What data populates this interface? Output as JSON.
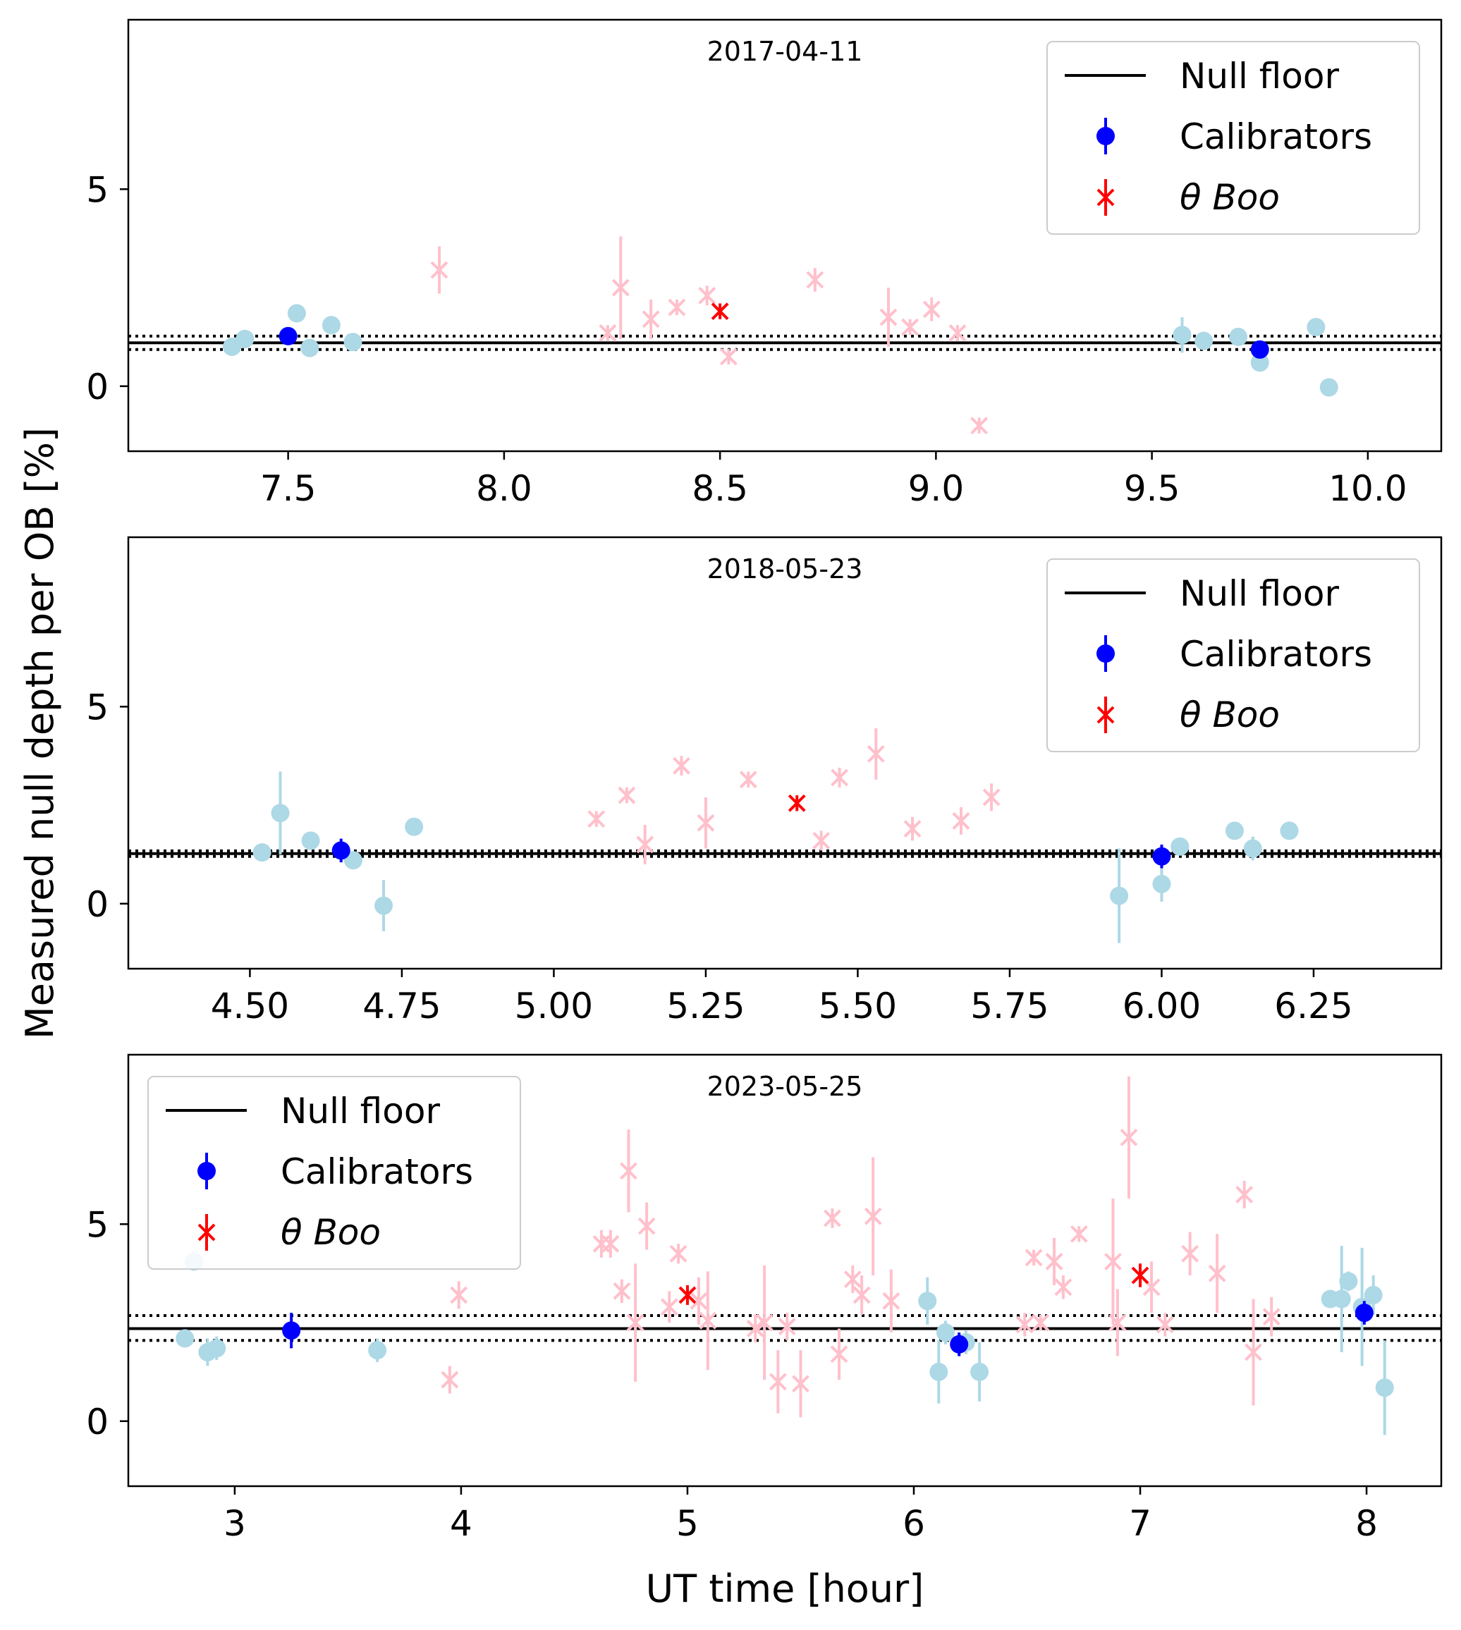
{
  "figure": {
    "ylabel": "Measured null depth per OB [%]",
    "xlabel": "UT time [hour]"
  },
  "legend_entries": [
    "Null floor",
    "Calibrators",
    "θ Boo"
  ],
  "colors": {
    "null_floor": "#000000",
    "calibrator_highlight": "#0000ff",
    "calibrator": "#add8e6",
    "target_highlight": "#ff0000",
    "target": "#ffc0cb"
  },
  "chart_data": [
    {
      "type": "scatter",
      "title": "2017-04-11",
      "xlim": [
        7.13,
        10.17
      ],
      "ylim": [
        -1.65,
        9.3
      ],
      "xticks": [
        7.5,
        8.0,
        8.5,
        9.0,
        9.5,
        10.0
      ],
      "xtick_labels": [
        "7.5",
        "8.0",
        "8.5",
        "9.0",
        "9.5",
        "10.0"
      ],
      "yticks": [
        0,
        5
      ],
      "ytick_labels": [
        "0",
        "5"
      ],
      "legend_position": "top-right",
      "null_floor": {
        "value": 1.1,
        "lower": 0.93,
        "upper": 1.27
      },
      "calibrators": [
        {
          "x": 7.37,
          "y": 1.0,
          "err": 0.1
        },
        {
          "x": 7.4,
          "y": 1.2,
          "err": 0.1
        },
        {
          "x": 7.52,
          "y": 1.85,
          "err": 0.1
        },
        {
          "x": 7.55,
          "y": 0.97,
          "err": 0.1
        },
        {
          "x": 7.6,
          "y": 1.55,
          "err": 0.1
        },
        {
          "x": 7.65,
          "y": 1.12,
          "err": 0.1
        },
        {
          "x": 9.57,
          "y": 1.3,
          "err": 0.45
        },
        {
          "x": 9.62,
          "y": 1.15,
          "err": 0.1
        },
        {
          "x": 9.7,
          "y": 1.25,
          "err": 0.1
        },
        {
          "x": 9.75,
          "y": 0.6,
          "err": 0.1
        },
        {
          "x": 9.88,
          "y": 1.5,
          "err": 0.1
        },
        {
          "x": 9.91,
          "y": -0.03,
          "err": 0.1
        }
      ],
      "calibrators_highlight": [
        {
          "x": 7.5,
          "y": 1.27,
          "err": 0.12
        },
        {
          "x": 9.75,
          "y": 0.93,
          "err": 0.1
        }
      ],
      "targets": [
        {
          "x": 7.85,
          "y": 2.95,
          "err": 0.6
        },
        {
          "x": 8.24,
          "y": 1.35,
          "err": 0.2
        },
        {
          "x": 8.27,
          "y": 2.5,
          "err": 1.3
        },
        {
          "x": 8.34,
          "y": 1.7,
          "err": 0.5
        },
        {
          "x": 8.4,
          "y": 2.0,
          "err": 0.2
        },
        {
          "x": 8.47,
          "y": 2.3,
          "err": 0.25
        },
        {
          "x": 8.52,
          "y": 0.75,
          "err": 0.2
        },
        {
          "x": 8.72,
          "y": 2.7,
          "err": 0.3
        },
        {
          "x": 8.89,
          "y": 1.75,
          "err": 0.75
        },
        {
          "x": 8.94,
          "y": 1.5,
          "err": 0.2
        },
        {
          "x": 8.99,
          "y": 1.95,
          "err": 0.3
        },
        {
          "x": 9.05,
          "y": 1.35,
          "err": 0.2
        },
        {
          "x": 9.1,
          "y": -1.0,
          "err": 0.2
        }
      ],
      "targets_highlight": [
        {
          "x": 8.5,
          "y": 1.9,
          "err": 0.2
        }
      ]
    },
    {
      "type": "scatter",
      "title": "2018-05-23",
      "xlim": [
        4.3,
        6.46
      ],
      "ylim": [
        -1.65,
        9.3
      ],
      "xticks": [
        4.5,
        4.75,
        5.0,
        5.25,
        5.5,
        5.75,
        6.0,
        6.25
      ],
      "xtick_labels": [
        "4.50",
        "4.75",
        "5.00",
        "5.25",
        "5.50",
        "5.75",
        "6.00",
        "6.25"
      ],
      "yticks": [
        0,
        5
      ],
      "ytick_labels": [
        "0",
        "5"
      ],
      "legend_position": "top-right",
      "null_floor": {
        "value": 1.27,
        "lower": 1.2,
        "upper": 1.34
      },
      "calibrators": [
        {
          "x": 4.52,
          "y": 1.3,
          "err": 0.15
        },
        {
          "x": 4.55,
          "y": 2.3,
          "err": 1.05
        },
        {
          "x": 4.6,
          "y": 1.6,
          "err": 0.15
        },
        {
          "x": 4.67,
          "y": 1.1,
          "err": 0.15
        },
        {
          "x": 4.72,
          "y": -0.05,
          "err": 0.65
        },
        {
          "x": 4.77,
          "y": 1.95,
          "err": 0.1
        },
        {
          "x": 5.93,
          "y": 0.2,
          "err": 1.2
        },
        {
          "x": 6.0,
          "y": 0.5,
          "err": 0.45
        },
        {
          "x": 6.03,
          "y": 1.45,
          "err": 0.15
        },
        {
          "x": 6.12,
          "y": 1.85,
          "err": 0.1
        },
        {
          "x": 6.15,
          "y": 1.4,
          "err": 0.3
        },
        {
          "x": 6.21,
          "y": 1.85,
          "err": 0.1
        }
      ],
      "calibrators_highlight": [
        {
          "x": 4.65,
          "y": 1.35,
          "err": 0.3
        },
        {
          "x": 6.0,
          "y": 1.2,
          "err": 0.3
        }
      ],
      "targets": [
        {
          "x": 5.07,
          "y": 2.15,
          "err": 0.2
        },
        {
          "x": 5.12,
          "y": 2.75,
          "err": 0.2
        },
        {
          "x": 5.15,
          "y": 1.5,
          "err": 0.5
        },
        {
          "x": 5.21,
          "y": 3.5,
          "err": 0.25
        },
        {
          "x": 5.25,
          "y": 2.05,
          "err": 0.65
        },
        {
          "x": 5.32,
          "y": 3.15,
          "err": 0.2
        },
        {
          "x": 5.44,
          "y": 1.6,
          "err": 0.25
        },
        {
          "x": 5.47,
          "y": 3.2,
          "err": 0.25
        },
        {
          "x": 5.53,
          "y": 3.8,
          "err": 0.65
        },
        {
          "x": 5.59,
          "y": 1.9,
          "err": 0.3
        },
        {
          "x": 5.67,
          "y": 2.1,
          "err": 0.35
        },
        {
          "x": 5.72,
          "y": 2.7,
          "err": 0.35
        }
      ],
      "targets_highlight": [
        {
          "x": 5.4,
          "y": 2.55,
          "err": 0.2
        }
      ]
    },
    {
      "type": "scatter",
      "title": "2023-05-25",
      "xlim": [
        2.53,
        8.33
      ],
      "ylim": [
        -1.65,
        9.3
      ],
      "xticks": [
        3,
        4,
        5,
        6,
        7,
        8
      ],
      "xtick_labels": [
        "3",
        "4",
        "5",
        "6",
        "7",
        "8"
      ],
      "yticks": [
        0,
        5
      ],
      "ytick_labels": [
        "0",
        "5"
      ],
      "legend_position": "top-left",
      "null_floor": {
        "value": 2.35,
        "lower": 2.05,
        "upper": 2.68
      },
      "calibrators": [
        {
          "x": 2.78,
          "y": 2.1,
          "err": 0.2
        },
        {
          "x": 2.82,
          "y": 4.05,
          "err": 0.15
        },
        {
          "x": 2.88,
          "y": 1.75,
          "err": 0.35
        },
        {
          "x": 2.92,
          "y": 1.85,
          "err": 0.3
        },
        {
          "x": 3.63,
          "y": 1.8,
          "err": 0.3
        },
        {
          "x": 6.06,
          "y": 3.05,
          "err": 0.6
        },
        {
          "x": 6.11,
          "y": 1.25,
          "err": 0.8
        },
        {
          "x": 6.14,
          "y": 2.25,
          "err": 0.3
        },
        {
          "x": 6.23,
          "y": 2.0,
          "err": 0.3
        },
        {
          "x": 6.29,
          "y": 1.25,
          "err": 0.75
        },
        {
          "x": 7.84,
          "y": 3.1,
          "err": 0.2
        },
        {
          "x": 7.89,
          "y": 3.1,
          "err": 1.35
        },
        {
          "x": 7.92,
          "y": 3.55,
          "err": 0.25
        },
        {
          "x": 7.98,
          "y": 2.9,
          "err": 1.5
        },
        {
          "x": 8.03,
          "y": 3.2,
          "err": 0.5
        },
        {
          "x": 8.08,
          "y": 0.85,
          "err": 1.2
        }
      ],
      "calibrators_highlight": [
        {
          "x": 3.25,
          "y": 2.3,
          "err": 0.45
        },
        {
          "x": 6.2,
          "y": 1.95,
          "err": 0.3
        },
        {
          "x": 7.99,
          "y": 2.75,
          "err": 0.3
        }
      ],
      "targets": [
        {
          "x": 3.95,
          "y": 1.05,
          "err": 0.35
        },
        {
          "x": 3.99,
          "y": 3.2,
          "err": 0.35
        },
        {
          "x": 4.62,
          "y": 4.5,
          "err": 0.35
        },
        {
          "x": 4.66,
          "y": 4.5,
          "err": 0.35
        },
        {
          "x": 4.71,
          "y": 3.3,
          "err": 0.3
        },
        {
          "x": 4.74,
          "y": 6.35,
          "err": 1.05
        },
        {
          "x": 4.77,
          "y": 2.5,
          "err": 1.5
        },
        {
          "x": 4.82,
          "y": 4.95,
          "err": 0.6
        },
        {
          "x": 4.92,
          "y": 2.9,
          "err": 0.4
        },
        {
          "x": 4.96,
          "y": 4.25,
          "err": 0.25
        },
        {
          "x": 5.05,
          "y": 3.05,
          "err": 0.6
        },
        {
          "x": 5.09,
          "y": 2.55,
          "err": 1.25
        },
        {
          "x": 5.3,
          "y": 2.35,
          "err": 0.35
        },
        {
          "x": 5.34,
          "y": 2.5,
          "err": 1.45
        },
        {
          "x": 5.4,
          "y": 1.0,
          "err": 0.8
        },
        {
          "x": 5.44,
          "y": 2.4,
          "err": 0.35
        },
        {
          "x": 5.5,
          "y": 0.95,
          "err": 0.85
        },
        {
          "x": 5.64,
          "y": 5.15,
          "err": 0.25
        },
        {
          "x": 5.67,
          "y": 1.7,
          "err": 0.65
        },
        {
          "x": 5.73,
          "y": 3.6,
          "err": 0.35
        },
        {
          "x": 5.77,
          "y": 3.2,
          "err": 0.5
        },
        {
          "x": 5.82,
          "y": 5.2,
          "err": 1.5
        },
        {
          "x": 5.9,
          "y": 3.05,
          "err": 0.8
        },
        {
          "x": 6.49,
          "y": 2.45,
          "err": 0.3
        },
        {
          "x": 6.53,
          "y": 4.15,
          "err": 0.2
        },
        {
          "x": 6.56,
          "y": 2.5,
          "err": 0.2
        },
        {
          "x": 6.62,
          "y": 4.05,
          "err": 0.6
        },
        {
          "x": 6.66,
          "y": 3.4,
          "err": 0.3
        },
        {
          "x": 6.73,
          "y": 4.75,
          "err": 0.2
        },
        {
          "x": 6.88,
          "y": 4.05,
          "err": 1.6
        },
        {
          "x": 6.9,
          "y": 2.5,
          "err": 0.85
        },
        {
          "x": 6.95,
          "y": 7.2,
          "err": 1.55
        },
        {
          "x": 7.05,
          "y": 3.4,
          "err": 0.65
        },
        {
          "x": 7.11,
          "y": 2.45,
          "err": 0.3
        },
        {
          "x": 7.22,
          "y": 4.25,
          "err": 0.55
        },
        {
          "x": 7.34,
          "y": 3.75,
          "err": 1.0
        },
        {
          "x": 7.46,
          "y": 5.75,
          "err": 0.35
        },
        {
          "x": 7.5,
          "y": 1.75,
          "err": 1.35
        },
        {
          "x": 7.58,
          "y": 2.65,
          "err": 0.5
        }
      ],
      "targets_highlight": [
        {
          "x": 5.0,
          "y": 3.2,
          "err": 0.25
        },
        {
          "x": 7.0,
          "y": 3.7,
          "err": 0.3
        }
      ]
    }
  ]
}
